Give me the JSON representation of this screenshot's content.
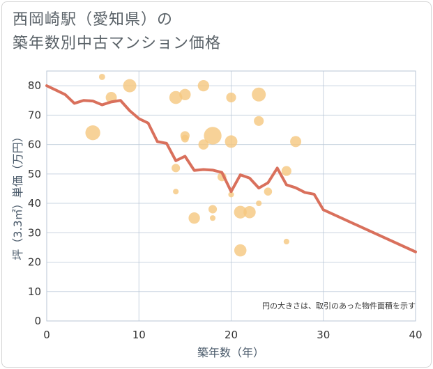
{
  "title_line1": "西岡崎駅（愛知県）の",
  "title_line2": "築年数別中古マンション価格",
  "chart_data": {
    "type": "scatter",
    "title": "西岡崎駅（愛知県）の築年数別中古マンション価格",
    "xlabel": "築年数（年）",
    "ylabel": "坪（3.3㎡）単価（万円）",
    "xlim": [
      0,
      40
    ],
    "ylim": [
      0,
      85
    ],
    "xticks": [
      0,
      10,
      20,
      30,
      40
    ],
    "yticks": [
      0,
      10,
      20,
      30,
      40,
      50,
      60,
      70,
      80
    ],
    "note": "円の大きさは、取引のあった物件面積を示す",
    "colors": {
      "bubble": "#f5c77e",
      "line": "#d9705c",
      "grid": "#b8c6d6"
    },
    "bubbles": [
      {
        "x": 5,
        "y": 64,
        "s": 3.4
      },
      {
        "x": 6,
        "y": 83,
        "s": 0.6
      },
      {
        "x": 7,
        "y": 76,
        "s": 1.9
      },
      {
        "x": 9,
        "y": 80,
        "s": 2.7
      },
      {
        "x": 14,
        "y": 76,
        "s": 2.6
      },
      {
        "x": 14,
        "y": 52,
        "s": 1.1
      },
      {
        "x": 14,
        "y": 44,
        "s": 0.5
      },
      {
        "x": 15,
        "y": 77,
        "s": 2.0
      },
      {
        "x": 15,
        "y": 63,
        "s": 1.3
      },
      {
        "x": 15,
        "y": 62,
        "s": 0.9
      },
      {
        "x": 16,
        "y": 35,
        "s": 2.0
      },
      {
        "x": 17,
        "y": 80,
        "s": 2.0
      },
      {
        "x": 17,
        "y": 60,
        "s": 1.6
      },
      {
        "x": 18,
        "y": 63,
        "s": 4.8
      },
      {
        "x": 18,
        "y": 38,
        "s": 1.1
      },
      {
        "x": 18,
        "y": 35,
        "s": 0.5
      },
      {
        "x": 19,
        "y": 49,
        "s": 1.2
      },
      {
        "x": 20,
        "y": 76,
        "s": 1.5
      },
      {
        "x": 20,
        "y": 61,
        "s": 2.4
      },
      {
        "x": 20,
        "y": 43,
        "s": 0.5
      },
      {
        "x": 21,
        "y": 37,
        "s": 2.5
      },
      {
        "x": 21,
        "y": 24,
        "s": 2.3
      },
      {
        "x": 22,
        "y": 37,
        "s": 2.3
      },
      {
        "x": 23,
        "y": 77,
        "s": 3.0
      },
      {
        "x": 23,
        "y": 68,
        "s": 1.5
      },
      {
        "x": 23,
        "y": 40,
        "s": 0.5
      },
      {
        "x": 24,
        "y": 44,
        "s": 1.0
      },
      {
        "x": 26,
        "y": 51,
        "s": 1.5
      },
      {
        "x": 26,
        "y": 27,
        "s": 0.5
      },
      {
        "x": 27,
        "y": 61,
        "s": 1.9
      }
    ],
    "line": {
      "x": [
        0,
        1,
        2,
        3,
        4,
        5,
        6,
        7,
        8,
        9,
        10,
        11,
        12,
        13,
        14,
        15,
        16,
        17,
        18,
        19,
        20,
        21,
        22,
        23,
        24,
        25,
        26,
        27,
        28,
        29,
        30,
        40
      ],
      "y": [
        80,
        78.5,
        77,
        74,
        75,
        74.8,
        73.5,
        74.5,
        75,
        71.5,
        68.8,
        67.3,
        61,
        60.4,
        54.5,
        56,
        51.2,
        51.5,
        51.3,
        50.5,
        44,
        49.7,
        48.6,
        45.2,
        47,
        52,
        46.3,
        45.3,
        43.7,
        43.1,
        37.8,
        23.5
      ]
    }
  }
}
